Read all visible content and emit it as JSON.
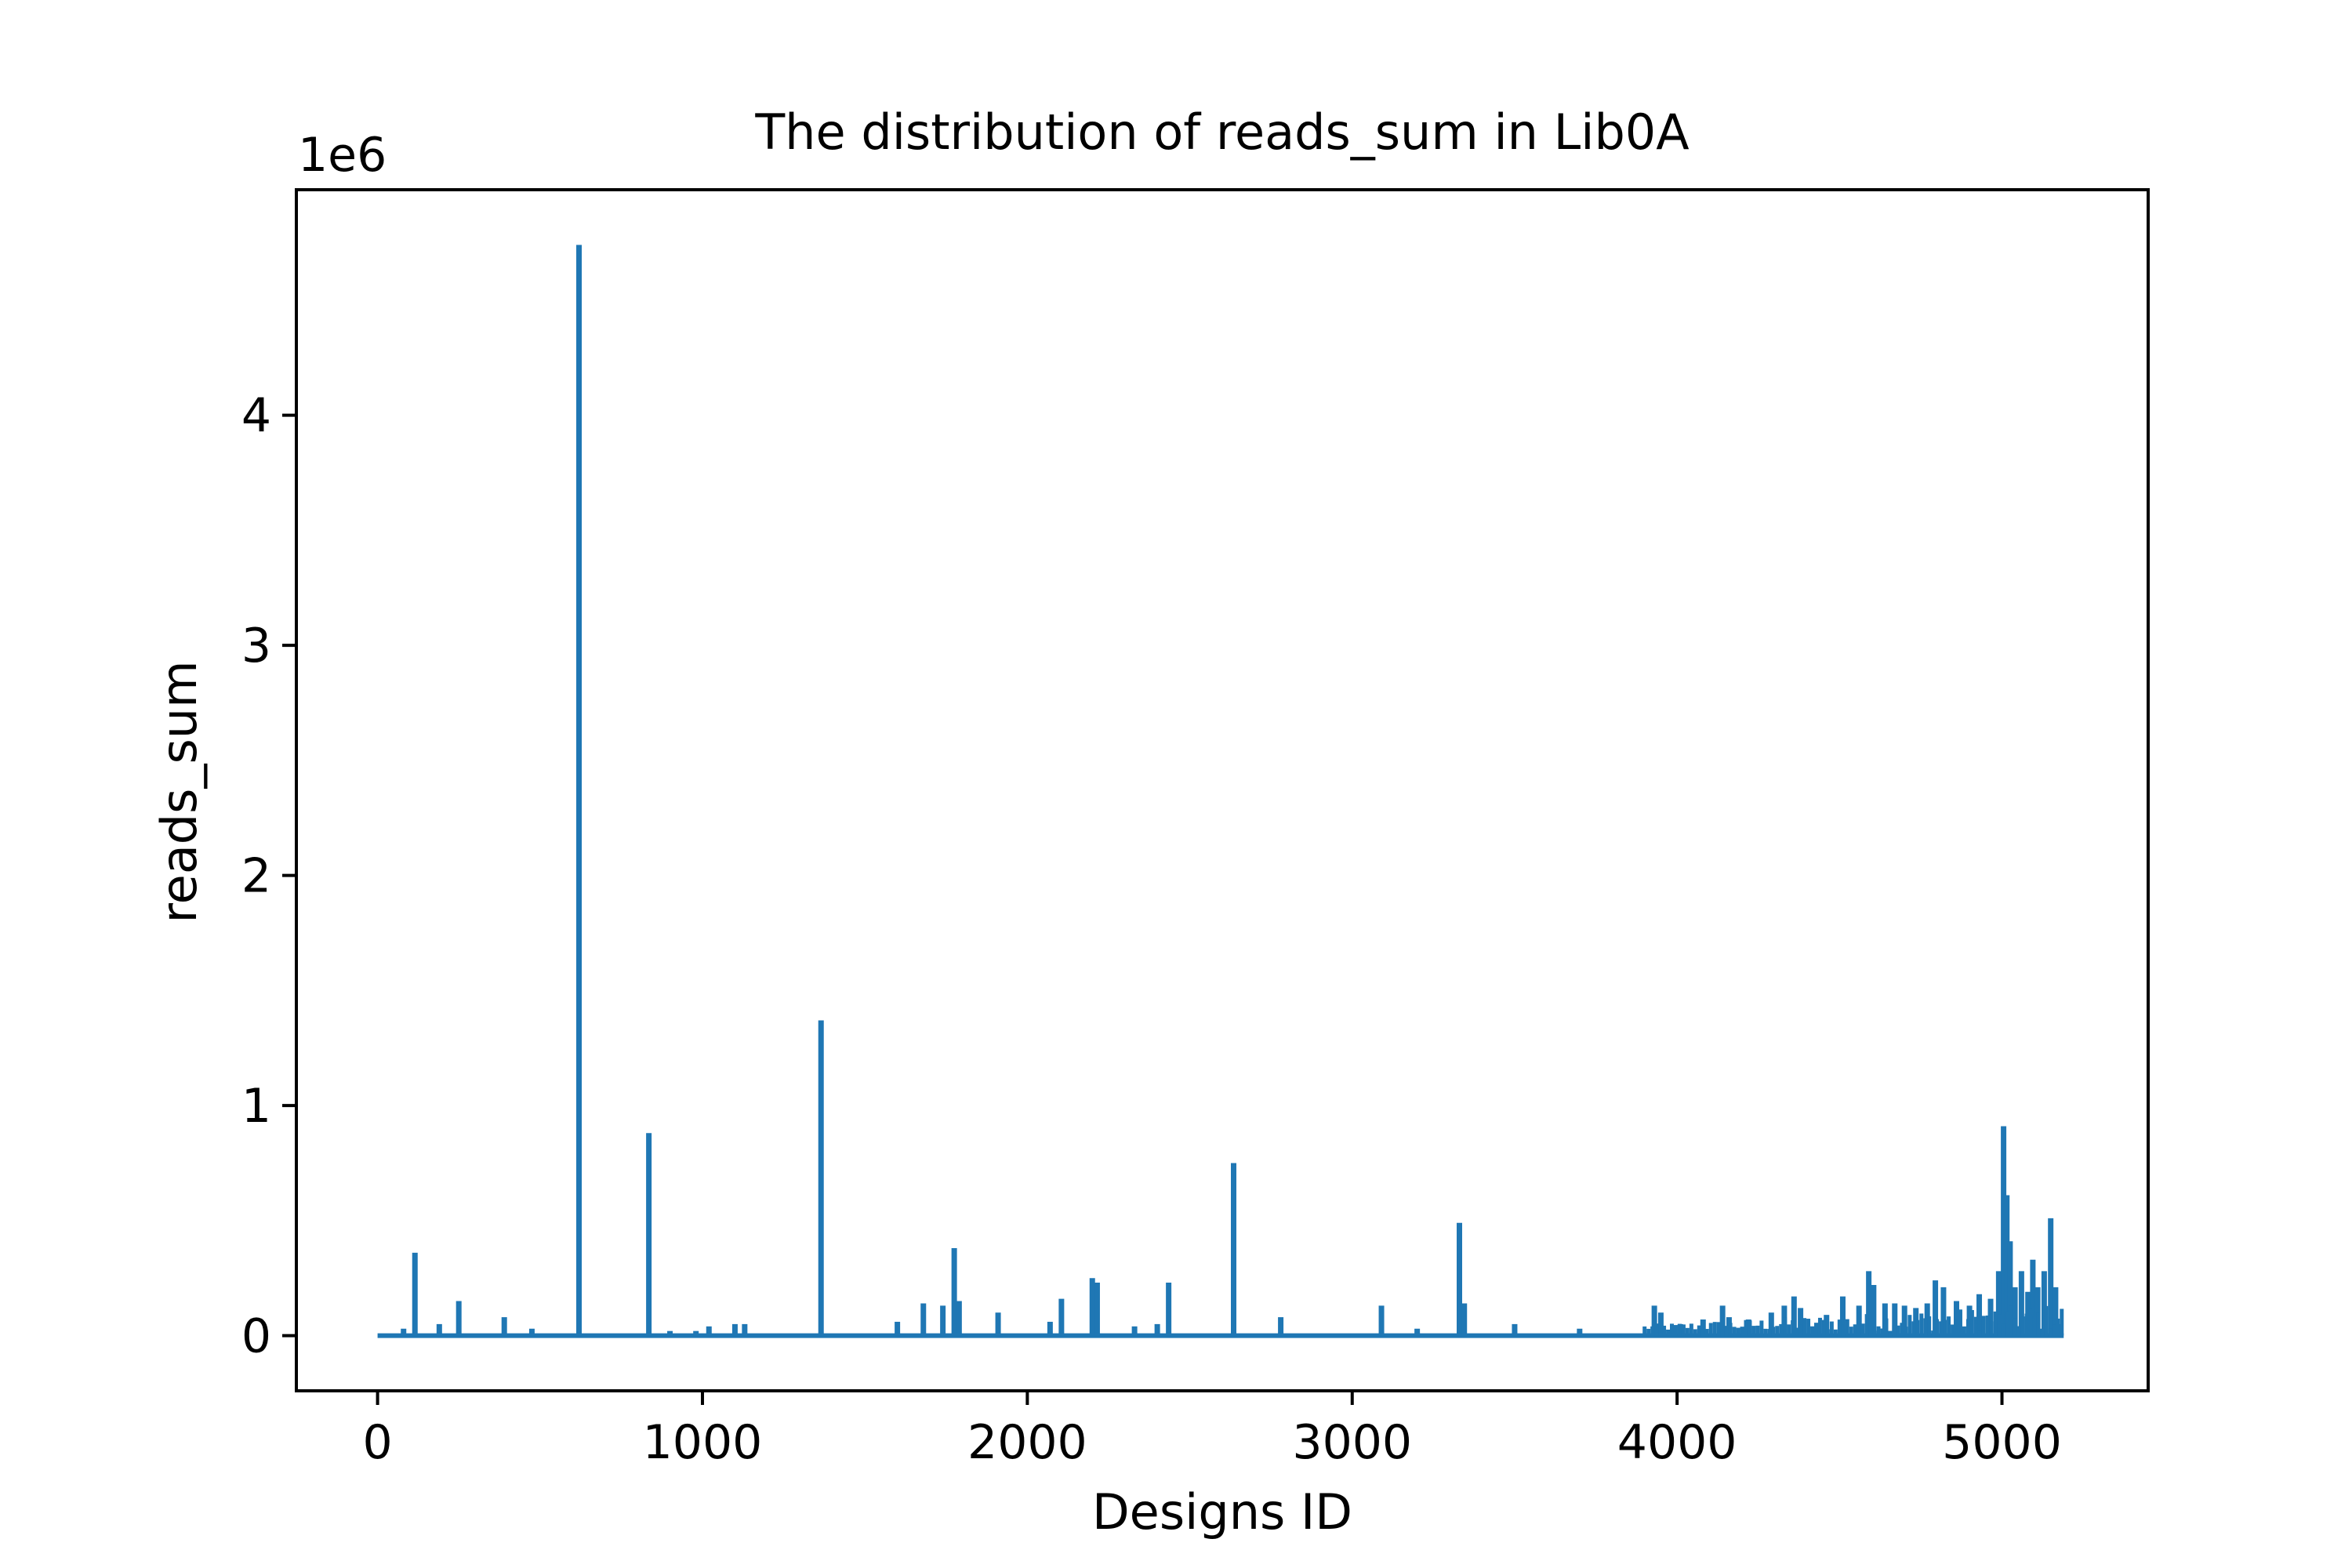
{
  "chart_data": {
    "type": "line",
    "title": "The distribution of reads_sum in Lib0A",
    "xlabel": "Designs ID",
    "ylabel": "reads_sum",
    "y_offset_label": "1e6",
    "xlim": [
      -250,
      5450
    ],
    "ylim": [
      -0.24,
      4.98
    ],
    "y_scale_note": "values in units of 1e6",
    "x_ticks": [
      0,
      1000,
      2000,
      3000,
      4000,
      5000
    ],
    "x_tick_labels": [
      "0",
      "1000",
      "2000",
      "3000",
      "4000",
      "5000"
    ],
    "y_ticks": [
      0,
      1,
      2,
      3,
      4
    ],
    "y_tick_labels": [
      "0",
      "1",
      "2",
      "3",
      "4"
    ],
    "grid": false,
    "line_color": "#1f77b4",
    "baseline": 0,
    "x_end": 5190,
    "series": [
      {
        "x": [
          80,
          115,
          190,
          250,
          390,
          475,
          620,
          835,
          900,
          980,
          1020,
          1100,
          1130,
          1365,
          1600,
          1680,
          1740,
          1775,
          1790,
          1910,
          2070,
          2105,
          2200,
          2215,
          2330,
          2400,
          2435,
          2635,
          2780,
          3090,
          3200,
          3330,
          3345,
          3500,
          3700,
          3930,
          3950,
          4010,
          4080,
          4140,
          4160,
          4220,
          4290,
          4330,
          4360,
          4380,
          4460,
          4510,
          4560,
          4590,
          4605,
          4640,
          4670,
          4700,
          4735,
          4770,
          4795,
          4820,
          4860,
          4900,
          4930,
          4965,
          4990,
          5005,
          5015,
          5025,
          5040,
          5060,
          5080,
          5095,
          5110,
          5130,
          5150,
          5165,
          5180
        ],
        "y": [
          0.03,
          0.36,
          0.05,
          0.15,
          0.08,
          0.03,
          4.74,
          0.88,
          0.02,
          0.02,
          0.04,
          0.05,
          0.05,
          1.37,
          0.06,
          0.14,
          0.13,
          0.38,
          0.15,
          0.1,
          0.06,
          0.16,
          0.25,
          0.23,
          0.04,
          0.05,
          0.23,
          0.75,
          0.08,
          0.13,
          0.03,
          0.49,
          0.14,
          0.05,
          0.03,
          0.13,
          0.1,
          0.05,
          0.07,
          0.13,
          0.08,
          0.07,
          0.1,
          0.13,
          0.17,
          0.12,
          0.09,
          0.17,
          0.13,
          0.28,
          0.22,
          0.14,
          0.14,
          0.13,
          0.12,
          0.14,
          0.24,
          0.21,
          0.15,
          0.13,
          0.18,
          0.16,
          0.28,
          0.91,
          0.61,
          0.41,
          0.21,
          0.28,
          0.19,
          0.33,
          0.21,
          0.28,
          0.51,
          0.21,
          0.05
        ]
      }
    ]
  }
}
